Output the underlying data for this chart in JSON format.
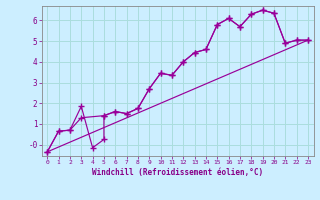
{
  "xlabel": "Windchill (Refroidissement éolien,°C)",
  "bg_color": "#cceeff",
  "line_color": "#990099",
  "grid_color": "#aadddd",
  "xlim": [
    -0.5,
    23.5
  ],
  "ylim": [
    -0.55,
    6.7
  ],
  "yticks": [
    0,
    1,
    2,
    3,
    4,
    5,
    6
  ],
  "ytick_labels": [
    "-0",
    "1",
    "2",
    "3",
    "4",
    "5",
    "6"
  ],
  "xticks": [
    0,
    1,
    2,
    3,
    4,
    5,
    6,
    7,
    8,
    9,
    10,
    11,
    12,
    13,
    14,
    15,
    16,
    17,
    18,
    19,
    20,
    21,
    22,
    23
  ],
  "line1_x": [
    0,
    1,
    2,
    3,
    4,
    5,
    5,
    6,
    7,
    8,
    9,
    10,
    11,
    12,
    13,
    14,
    15,
    16,
    17,
    18,
    19,
    20,
    21,
    22,
    23
  ],
  "line1_y": [
    -0.35,
    0.65,
    0.7,
    1.85,
    -0.15,
    0.25,
    1.4,
    1.6,
    1.5,
    1.75,
    2.7,
    3.45,
    3.35,
    4.0,
    4.45,
    4.6,
    5.8,
    6.1,
    5.7,
    6.3,
    6.5,
    6.35,
    4.9,
    5.05,
    5.05
  ],
  "line2_x": [
    0,
    1,
    2,
    3,
    5,
    6,
    7,
    8,
    9,
    10,
    11,
    12,
    13,
    14,
    15,
    16,
    17,
    18,
    19,
    20,
    21,
    22,
    23
  ],
  "line2_y": [
    -0.35,
    0.65,
    0.7,
    1.3,
    1.4,
    1.6,
    1.5,
    1.75,
    2.7,
    3.45,
    3.35,
    4.0,
    4.45,
    4.6,
    5.8,
    6.1,
    5.7,
    6.3,
    6.5,
    6.35,
    4.9,
    5.05,
    5.05
  ],
  "trend_x": [
    0,
    23
  ],
  "trend_y": [
    -0.35,
    5.05
  ],
  "font_color": "#880088",
  "font_family": "monospace"
}
